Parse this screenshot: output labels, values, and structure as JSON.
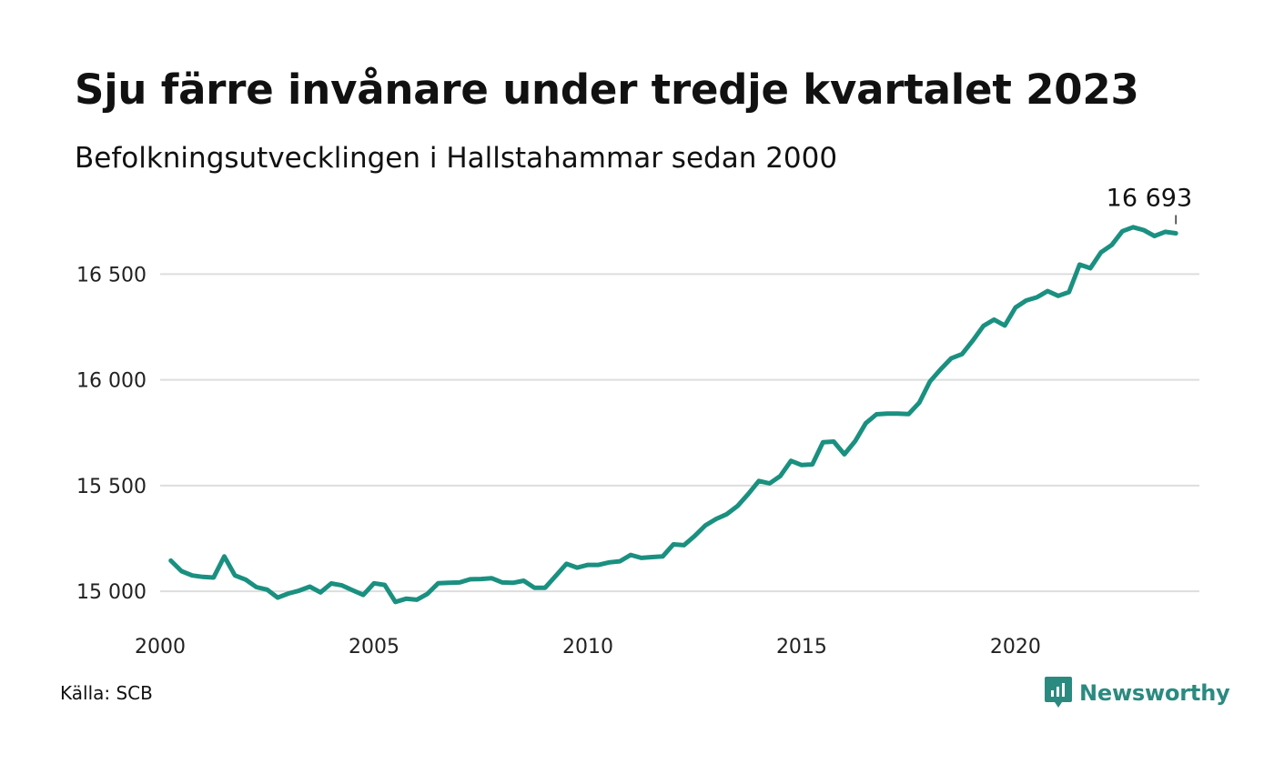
{
  "title": "Sju färre invånare under tredje kvartalet 2023",
  "subtitle": "Befolkningsutvecklingen i Hallstahammar sedan 2000",
  "source": "Källa: SCB",
  "brand": {
    "name": "Newsworthy",
    "icon": "newsworthy-chat-chart-icon",
    "color": "#2b8a80"
  },
  "chart_data": {
    "type": "line",
    "x_axis": {
      "min": 2000,
      "max": 2024.3,
      "ticks": [
        2000,
        2005,
        2010,
        2015,
        2020
      ],
      "tick_labels": [
        "2000",
        "2005",
        "2010",
        "2015",
        "2020"
      ]
    },
    "y_axis": {
      "min": 14850,
      "max": 16850,
      "ticks": [
        15000,
        15500,
        16000,
        16500
      ],
      "tick_labels": [
        "15 000",
        "15 500",
        "16 000",
        "16 500"
      ]
    },
    "grid": true,
    "line_color": "#1a9080",
    "end_label": {
      "value": 16693,
      "text": "16 693"
    },
    "series": [
      {
        "x": [
          2000.25,
          2000.5,
          2000.75,
          2001.0,
          2001.25,
          2001.5,
          2001.75,
          2002.0,
          2002.25,
          2002.5,
          2002.75,
          2003.0,
          2003.25,
          2003.5,
          2003.75,
          2004.0,
          2004.25,
          2004.5,
          2004.75,
          2005.0,
          2005.25,
          2005.5,
          2005.75,
          2006.0,
          2006.25,
          2006.5,
          2006.75,
          2007.0,
          2007.25,
          2007.5,
          2007.75,
          2008.0,
          2008.25,
          2008.5,
          2008.75,
          2009.0,
          2009.25,
          2009.5,
          2009.75,
          2010.0,
          2010.25,
          2010.5,
          2010.75,
          2011.0,
          2011.25,
          2011.5,
          2011.75,
          2012.0,
          2012.25,
          2012.5,
          2012.75,
          2013.0,
          2013.25,
          2013.5,
          2013.75,
          2014.0,
          2014.25,
          2014.5,
          2014.75,
          2015.0,
          2015.25,
          2015.5,
          2015.75,
          2016.0,
          2016.25,
          2016.5,
          2016.75,
          2017.0,
          2017.25,
          2017.5,
          2017.75,
          2018.0,
          2018.25,
          2018.5,
          2018.75,
          2019.0,
          2019.25,
          2019.5,
          2019.75,
          2020.0,
          2020.25,
          2020.5,
          2020.75,
          2021.0,
          2021.25,
          2021.5,
          2021.75,
          2022.0,
          2022.25,
          2022.5,
          2022.75,
          2023.0,
          2023.25,
          2023.5,
          2023.75
        ],
        "y": [
          15145,
          15095,
          15075,
          15068,
          15065,
          15165,
          15075,
          15055,
          15020,
          15008,
          14970,
          14990,
          15003,
          15022,
          14995,
          15037,
          15028,
          15005,
          14983,
          15038,
          15030,
          14950,
          14965,
          14960,
          14988,
          15038,
          15040,
          15042,
          15057,
          15058,
          15062,
          15042,
          15040,
          15050,
          15017,
          15017,
          15073,
          15130,
          15112,
          15125,
          15125,
          15137,
          15142,
          15172,
          15158,
          15162,
          15165,
          15222,
          15218,
          15262,
          15312,
          15342,
          15365,
          15403,
          15460,
          15522,
          15510,
          15545,
          15617,
          15597,
          15600,
          15705,
          15708,
          15648,
          15710,
          15795,
          15837,
          15840,
          15840,
          15838,
          15892,
          15992,
          16050,
          16102,
          16122,
          16185,
          16255,
          16285,
          16257,
          16342,
          16375,
          16390,
          16420,
          16397,
          16415,
          16545,
          16528,
          16603,
          16638,
          16703,
          16722,
          16708,
          16680,
          16700,
          16693
        ]
      }
    ]
  }
}
